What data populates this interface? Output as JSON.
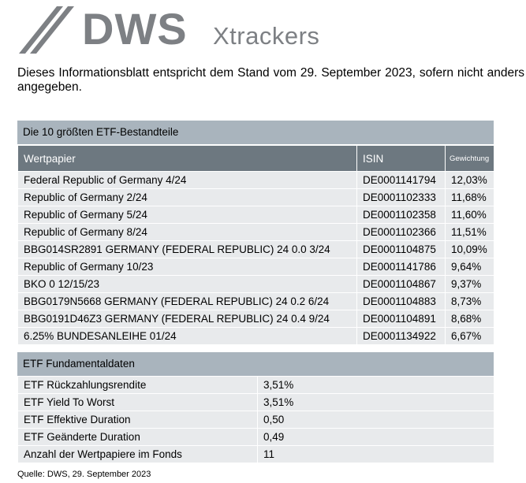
{
  "logo": {
    "brand": "DWS",
    "sub": "Xtrackers"
  },
  "intro": "Dieses Informationsblatt entspricht dem Stand vom 29. September 2023, sofern nicht anders angegeben.",
  "holdings": {
    "title": "Die 10 größten ETF-Bestandteile",
    "headers": {
      "name": "Wertpapier",
      "isin": "ISIN",
      "weight": "Gewichtung"
    },
    "rows": [
      {
        "name": "Federal Republic of Germany 4/24",
        "isin": "DE0001141794",
        "weight": "12,03%"
      },
      {
        "name": "Republic of Germany 2/24",
        "isin": "DE0001102333",
        "weight": "11,68%"
      },
      {
        "name": "Republic of Germany 5/24",
        "isin": "DE0001102358",
        "weight": "11,60%"
      },
      {
        "name": "Republic of Germany 8/24",
        "isin": "DE0001102366",
        "weight": "11,51%"
      },
      {
        "name": "BBG014SR2891 GERMANY (FEDERAL REPUBLIC) 24 0.0 3/24",
        "isin": "DE0001104875",
        "weight": "10,09%"
      },
      {
        "name": "Republic of Germany 10/23",
        "isin": "DE0001141786",
        "weight": "9,64%"
      },
      {
        "name": "BKO 0 12/15/23",
        "isin": "DE0001104867",
        "weight": "9,37%"
      },
      {
        "name": "BBG0179N5668 GERMANY (FEDERAL REPUBLIC) 24 0.2 6/24",
        "isin": "DE0001104883",
        "weight": "8,73%"
      },
      {
        "name": "BBG0191D46Z3 GERMANY (FEDERAL REPUBLIC) 24 0.4 9/24",
        "isin": "DE0001104891",
        "weight": "8,68%"
      },
      {
        "name": "6.25% BUNDESANLEIHE 01/24",
        "isin": "DE0001134922",
        "weight": "6,67%"
      }
    ]
  },
  "fundamentals": {
    "title": "ETF Fundamentaldaten",
    "rows": [
      {
        "label": "ETF Rückzahlungsrendite",
        "value": "3,51%"
      },
      {
        "label": "ETF Yield To Worst",
        "value": "3,51%"
      },
      {
        "label": "ETF Effektive Duration",
        "value": "0,50"
      },
      {
        "label": "ETF Geänderte Duration",
        "value": "0,49"
      },
      {
        "label": "Anzahl der Wertpapiere im Fonds",
        "value": "11"
      }
    ]
  },
  "source": "Quelle: DWS, 29. September 2023"
}
